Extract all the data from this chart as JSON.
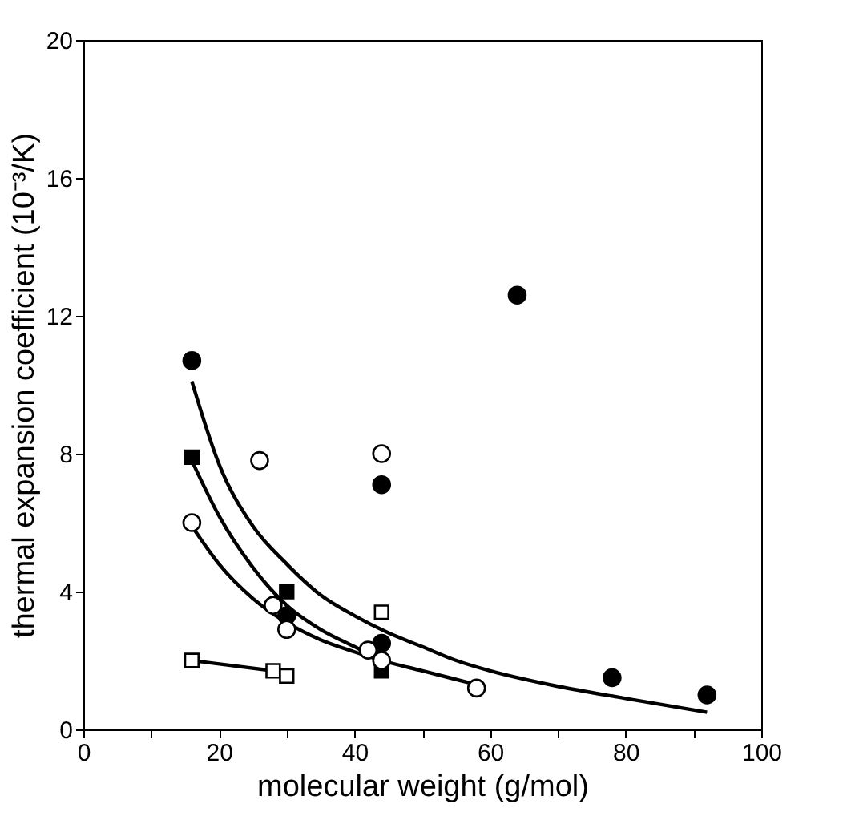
{
  "chart_data": {
    "type": "scatter",
    "xlabel": "molecular weight (g/mol)",
    "ylabel": "thermal expansion coefficient  (10⁻³/K)",
    "xlim": [
      0,
      100
    ],
    "ylim": [
      0,
      20
    ],
    "xticks": [
      0,
      {
        "value": 10,
        "label": null
      },
      20,
      {
        "value": 30,
        "label": null
      },
      40,
      {
        "value": 50,
        "label": null
      },
      60,
      {
        "value": 70,
        "label": null
      },
      80,
      {
        "value": 90,
        "label": null
      },
      100
    ],
    "yticks": [
      0,
      4,
      8,
      12,
      16,
      20
    ],
    "grid": false,
    "series": [
      {
        "type": "line",
        "color": "#000000",
        "line_style": "solid",
        "x": [
          16,
          20,
          25,
          30,
          35,
          40,
          45,
          50,
          55,
          60,
          70,
          80,
          92
        ],
        "values": [
          10.1,
          7.7,
          5.9,
          4.8,
          3.9,
          3.3,
          2.8,
          2.4,
          2.0,
          1.7,
          1.25,
          0.9,
          0.5
        ]
      },
      {
        "type": "line",
        "color": "#000000",
        "line_style": "solid",
        "x": [
          16,
          20,
          25,
          30,
          35,
          40,
          44
        ],
        "values": [
          7.8,
          6.2,
          4.7,
          3.6,
          2.9,
          2.4,
          2.0
        ]
      },
      {
        "type": "line",
        "color": "#000000",
        "line_style": "solid",
        "x": [
          16,
          20,
          25,
          30,
          35,
          40,
          44,
          50,
          58
        ],
        "values": [
          5.9,
          4.8,
          3.8,
          3.1,
          2.6,
          2.25,
          2.0,
          1.7,
          1.3
        ]
      },
      {
        "type": "line",
        "color": "#000000",
        "line_style": "solid",
        "x": [
          16,
          30
        ],
        "values": [
          2.0,
          1.65
        ]
      },
      {
        "color": "#000000",
        "marker": "circle",
        "x": [
          16,
          30,
          44,
          44,
          64,
          78,
          92
        ],
        "values": [
          10.7,
          3.3,
          7.1,
          2.5,
          12.6,
          1.5,
          1.0
        ]
      },
      {
        "color": "#000000",
        "marker": "square",
        "x": [
          16,
          30,
          44
        ],
        "values": [
          7.9,
          4.0,
          1.7
        ]
      },
      {
        "color": "#ffffff",
        "marker": "circle",
        "x": [
          16,
          26,
          28,
          30,
          42,
          44,
          44,
          58
        ],
        "values": [
          6.0,
          7.8,
          3.6,
          2.9,
          2.3,
          8.0,
          2.0,
          1.2
        ]
      },
      {
        "color": "#ffffff",
        "marker": "square",
        "x": [
          16,
          28,
          30,
          44
        ],
        "values": [
          2.0,
          1.7,
          1.55,
          3.4
        ]
      }
    ]
  }
}
